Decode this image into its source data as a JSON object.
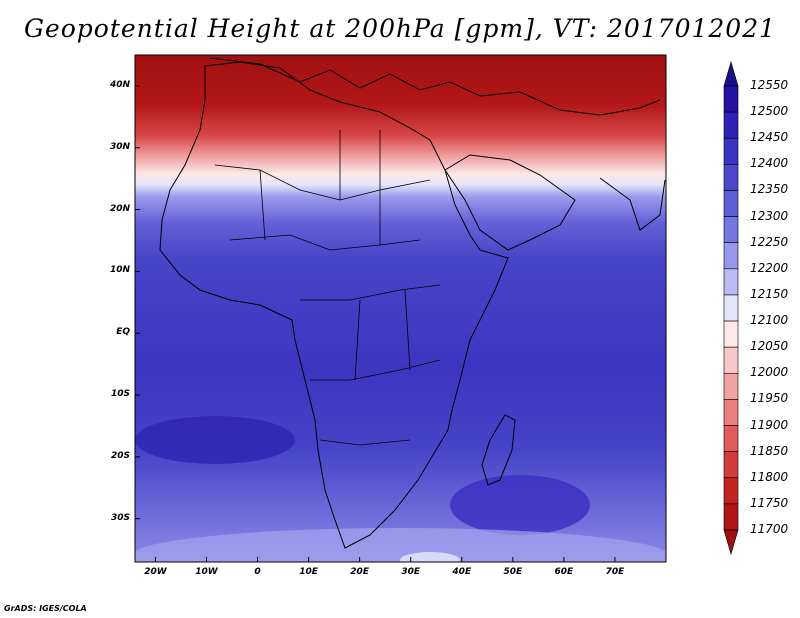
{
  "title": "Geopotential Height at 200hPa [gpm], VT: 2017012021",
  "credit": "GrADS: IGES/COLA",
  "map": {
    "variable": "Geopotential Height",
    "level": "200hPa",
    "units": "gpm",
    "valid_time": "2017012021",
    "lon_range": [
      -24,
      80
    ],
    "lat_range": [
      -37,
      45
    ],
    "lat_ticks": [
      {
        "value": 40,
        "label": "40N"
      },
      {
        "value": 30,
        "label": "30N"
      },
      {
        "value": 20,
        "label": "20N"
      },
      {
        "value": 10,
        "label": "10N"
      },
      {
        "value": 0,
        "label": "EQ"
      },
      {
        "value": -10,
        "label": "10S"
      },
      {
        "value": -20,
        "label": "20S"
      },
      {
        "value": -30,
        "label": "30S"
      }
    ],
    "lon_ticks": [
      {
        "value": -20,
        "label": "20W"
      },
      {
        "value": -10,
        "label": "10W"
      },
      {
        "value": 0,
        "label": "0"
      },
      {
        "value": 10,
        "label": "10E"
      },
      {
        "value": 20,
        "label": "20E"
      },
      {
        "value": 30,
        "label": "30E"
      },
      {
        "value": 40,
        "label": "40E"
      },
      {
        "value": 50,
        "label": "50E"
      },
      {
        "value": 60,
        "label": "60E"
      },
      {
        "value": 70,
        "label": "70E"
      }
    ]
  },
  "colorbar": {
    "labels": [
      "12550",
      "12500",
      "12450",
      "12400",
      "12350",
      "12300",
      "12250",
      "12200",
      "12150",
      "12100",
      "12050",
      "12000",
      "11950",
      "11900",
      "11850",
      "11800",
      "11750",
      "11700"
    ],
    "colors": [
      "#1a0f8a",
      "#2412a0",
      "#2d22b4",
      "#3a34c2",
      "#4b48cc",
      "#5e5ed6",
      "#7676e0",
      "#9797eb",
      "#bbbbf3",
      "#e4e4fa",
      "#fde9e9",
      "#f8c7c7",
      "#f1a3a3",
      "#ea7f7f",
      "#e05b5b",
      "#d33c3c",
      "#c22424",
      "#b01616",
      "#9c1010"
    ]
  }
}
